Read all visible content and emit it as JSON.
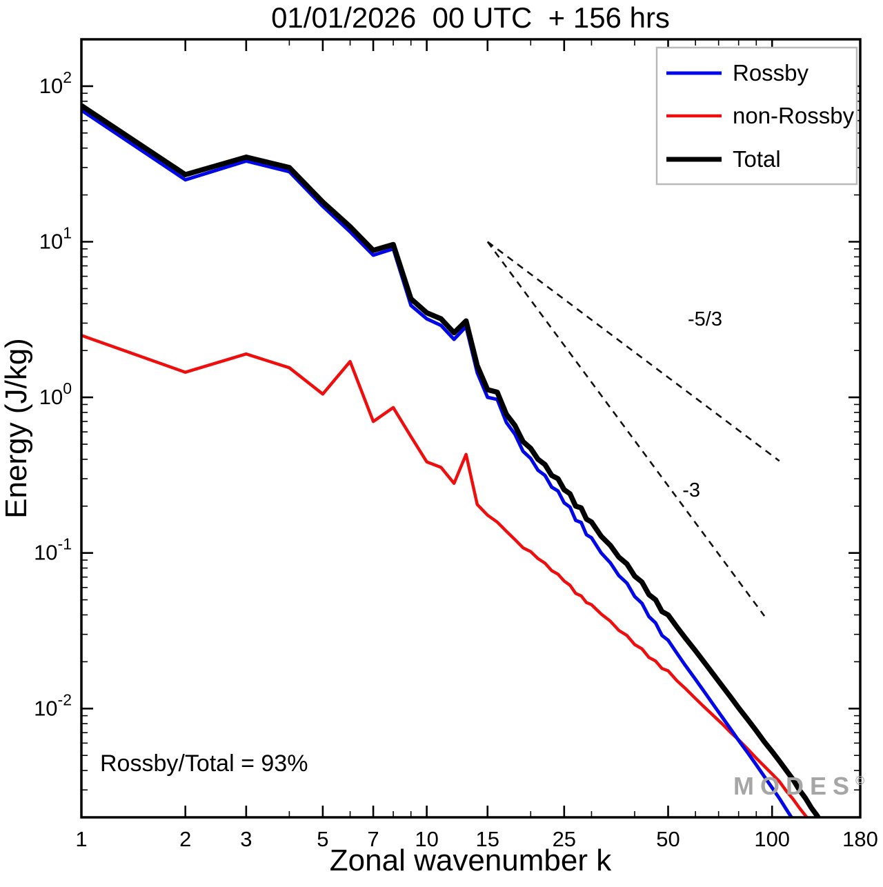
{
  "title": "01/01/2026  00 UTC  + 156 hrs",
  "annotation": "Rossby/Total = 93%",
  "watermark": {
    "text": "MODES",
    "sup": "©"
  },
  "chart_data": {
    "type": "line",
    "title": "01/01/2026 00 UTC + 156 hrs",
    "xlabel": "Zonal wavenumber k",
    "ylabel": "Energy (J/kg)",
    "xscale": "log",
    "yscale": "log",
    "xlim": [
      1,
      180
    ],
    "ylim": [
      0.002,
      200
    ],
    "xticks": [
      1,
      2,
      3,
      5,
      7,
      10,
      15,
      25,
      50,
      100,
      180
    ],
    "yticks_exp": [
      -2,
      -1,
      0,
      1,
      2
    ],
    "grid": false,
    "legend_position": "top-right",
    "series": [
      {
        "id": "rossby",
        "name": "Rossby",
        "color": "#0008e8",
        "x": [
          1,
          2,
          3,
          4,
          5,
          6,
          7,
          8,
          9,
          10,
          11,
          12,
          13,
          14,
          15,
          16,
          17,
          18,
          19,
          20,
          21,
          22,
          23,
          24,
          25,
          26,
          27,
          28,
          29,
          30,
          32,
          34,
          36,
          38,
          40,
          42,
          44,
          46,
          48,
          50,
          53,
          56,
          60,
          64,
          68,
          72,
          76,
          80,
          85,
          90,
          95,
          100,
          105,
          110,
          115,
          120
        ],
        "y": [
          70,
          25,
          33,
          28.2,
          16.9,
          11.6,
          8.2,
          9.0,
          3.9,
          3.2,
          2.9,
          2.36,
          2.85,
          1.44,
          1.0,
          0.97,
          0.69,
          0.58,
          0.45,
          0.405,
          0.34,
          0.315,
          0.265,
          0.25,
          0.21,
          0.197,
          0.162,
          0.157,
          0.131,
          0.125,
          0.1,
          0.0865,
          0.0715,
          0.064,
          0.0525,
          0.0475,
          0.039,
          0.0355,
          0.0295,
          0.0275,
          0.0227,
          0.019,
          0.0154,
          0.0126,
          0.0104,
          0.0087,
          0.00735,
          0.00625,
          0.0052,
          0.00435,
          0.00365,
          0.0031,
          0.00265,
          0.00225,
          0.00193,
          0.00165
        ]
      },
      {
        "id": "nonrossby",
        "name": "non-Rossby",
        "color": "#ee0e0e",
        "x": [
          1,
          2,
          3,
          4,
          5,
          6,
          7,
          8,
          9,
          10,
          11,
          12,
          13,
          14,
          15,
          16,
          17,
          18,
          19,
          20,
          21,
          22,
          23,
          24,
          25,
          26,
          27,
          28,
          29,
          30,
          32,
          34,
          36,
          38,
          40,
          42,
          44,
          46,
          48,
          50,
          53,
          56,
          60,
          64,
          68,
          72,
          76,
          80,
          85,
          90,
          95,
          100,
          105,
          110,
          115,
          120,
          125,
          130
        ],
        "y": [
          2.5,
          1.45,
          1.9,
          1.55,
          1.05,
          1.7,
          0.7,
          0.86,
          0.56,
          0.385,
          0.355,
          0.28,
          0.43,
          0.205,
          0.175,
          0.158,
          0.138,
          0.122,
          0.108,
          0.102,
          0.092,
          0.086,
          0.077,
          0.073,
          0.066,
          0.062,
          0.055,
          0.053,
          0.048,
          0.0465,
          0.0405,
          0.0365,
          0.0318,
          0.0295,
          0.0258,
          0.0242,
          0.0213,
          0.0202,
          0.0181,
          0.0175,
          0.0151,
          0.0135,
          0.0116,
          0.0101,
          0.0089,
          0.0079,
          0.007,
          0.0063,
          0.0055,
          0.0048,
          0.00425,
          0.0038,
          0.0034,
          0.00295,
          0.00262,
          0.0023,
          0.00205,
          0.00182
        ]
      },
      {
        "id": "total",
        "name": "Total",
        "color": "#000000",
        "x": [
          1,
          2,
          3,
          4,
          5,
          6,
          7,
          8,
          9,
          10,
          11,
          12,
          13,
          14,
          15,
          16,
          17,
          18,
          19,
          20,
          21,
          22,
          23,
          24,
          25,
          26,
          27,
          28,
          29,
          30,
          32,
          34,
          36,
          38,
          40,
          42,
          44,
          46,
          48,
          50,
          53,
          56,
          60,
          64,
          68,
          72,
          76,
          80,
          85,
          90,
          95,
          100,
          105,
          110,
          115,
          120,
          125,
          130,
          135,
          140,
          145,
          150,
          155
        ],
        "y": [
          75,
          27,
          35,
          30,
          18,
          12.5,
          8.8,
          9.6,
          4.3,
          3.5,
          3.2,
          2.6,
          3.1,
          1.6,
          1.12,
          1.08,
          0.78,
          0.66,
          0.52,
          0.47,
          0.4,
          0.37,
          0.315,
          0.3,
          0.255,
          0.24,
          0.2,
          0.195,
          0.165,
          0.158,
          0.128,
          0.112,
          0.094,
          0.085,
          0.071,
          0.065,
          0.054,
          0.05,
          0.042,
          0.04,
          0.0335,
          0.0285,
          0.0235,
          0.0195,
          0.0163,
          0.0138,
          0.0118,
          0.0101,
          0.0085,
          0.0072,
          0.0061,
          0.0053,
          0.0046,
          0.004,
          0.0035,
          0.003,
          0.00265,
          0.0023,
          0.00205,
          0.0018,
          0.0016,
          0.00145,
          0.0013
        ]
      }
    ],
    "reference_lines": [
      {
        "label": "-5/3",
        "slope": -1.6667,
        "start": [
          15,
          10
        ],
        "end_x": 105,
        "label_pos": [
          57,
          2.9
        ]
      },
      {
        "label": "-3",
        "slope": -3,
        "start": [
          15,
          10
        ],
        "end_x": 95,
        "label_pos": [
          55,
          0.23
        ]
      }
    ]
  }
}
